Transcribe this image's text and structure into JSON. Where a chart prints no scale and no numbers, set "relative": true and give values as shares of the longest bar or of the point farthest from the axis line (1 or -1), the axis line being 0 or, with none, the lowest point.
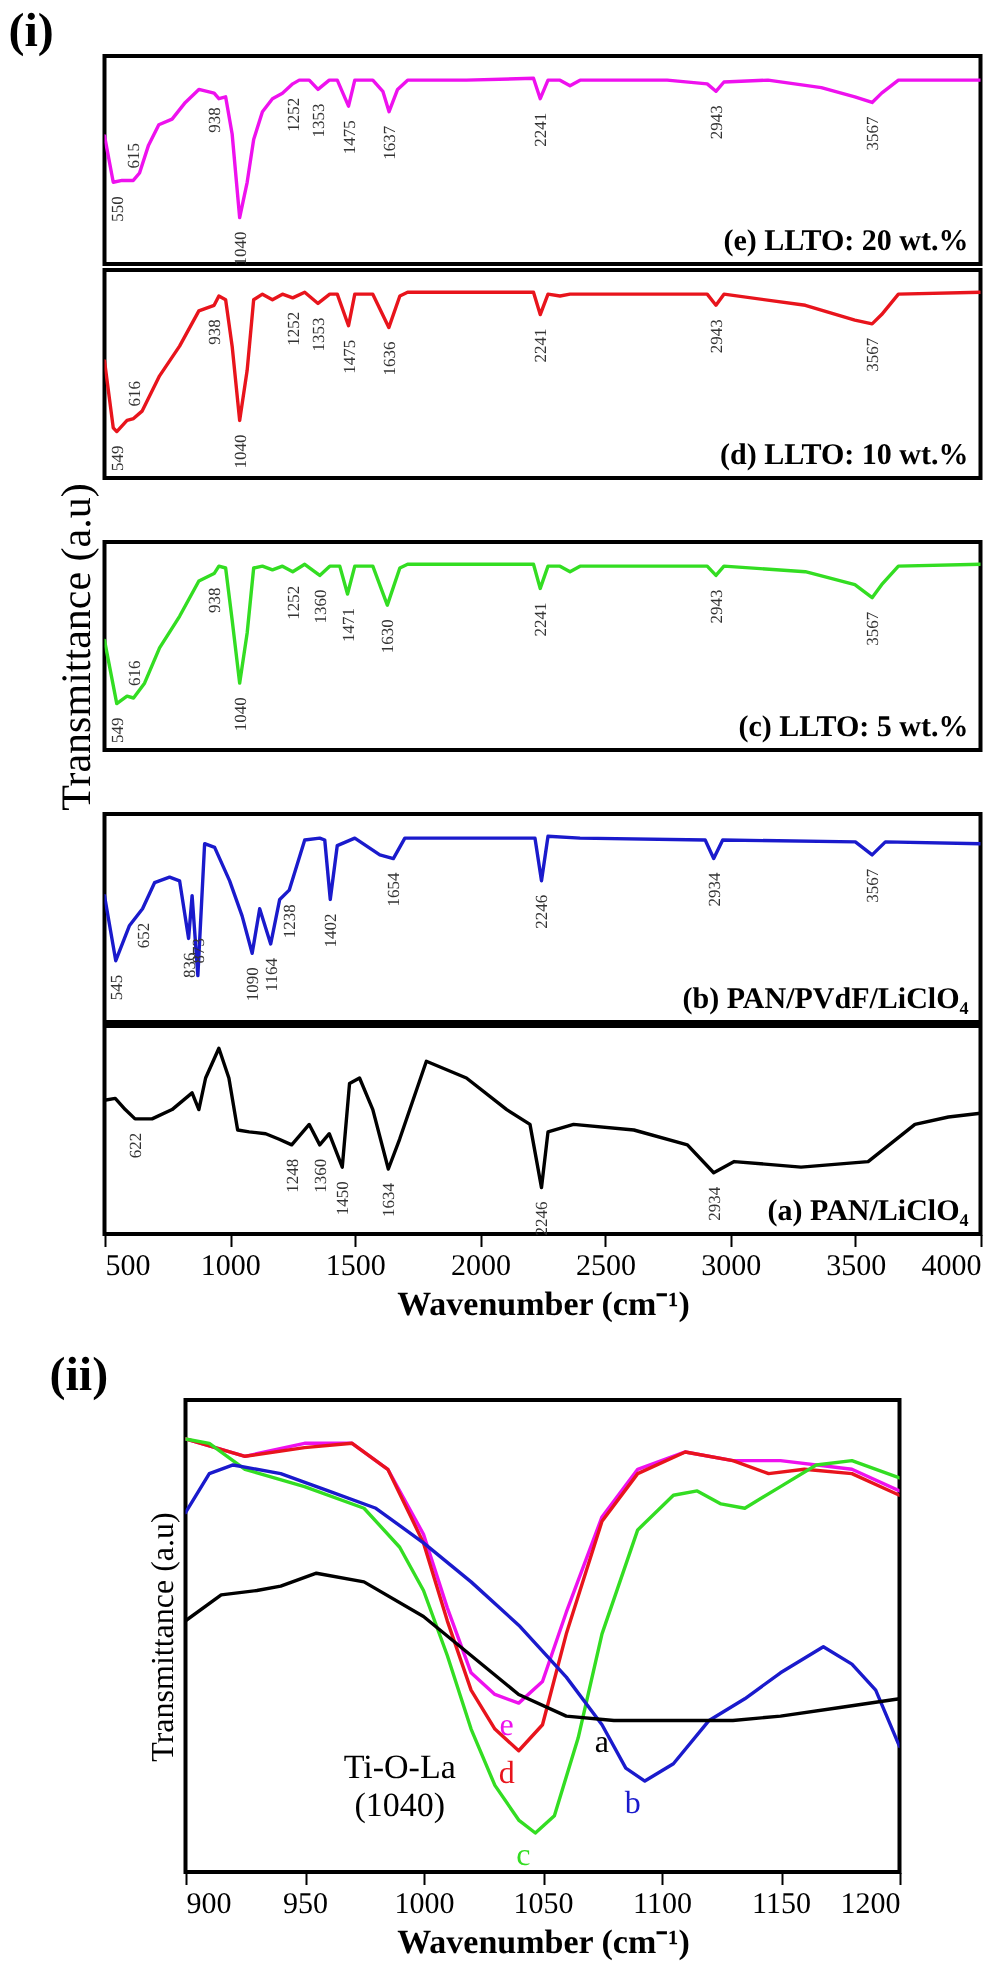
{
  "chart_data": [
    {
      "type": "line",
      "title": "(i)",
      "relative": true,
      "xlim": [
        500,
        4000
      ],
      "xticks": [
        500,
        1000,
        1500,
        2000,
        2500,
        3000,
        3500,
        4000
      ],
      "tick_labels": false,
      "x": [
        500,
        535,
        570,
        615,
        640,
        676,
        717,
        770,
        823,
        877,
        938,
        957,
        984,
        1010,
        1040,
        1070,
        1096,
        1131,
        1171,
        1211,
        1252,
        1278,
        1318,
        1353,
        1398,
        1430,
        1475,
        1500,
        1572,
        1612,
        1637,
        1671,
        1711,
        1946,
        2214,
        2241,
        2272,
        2320,
        2360,
        2400,
        2748,
        2908,
        2943,
        2975,
        3151,
        3364,
        3498,
        3567,
        3605,
        3672,
        3819,
        4000
      ],
      "series": [
        {
          "color": "#ee11ee",
          "values": [
            0.69,
            0.44,
            0.45,
            0.45,
            0.49,
            0.64,
            0.75,
            0.78,
            0.87,
            0.94,
            0.92,
            0.89,
            0.9,
            0.7,
            0.25,
            0.44,
            0.67,
            0.82,
            0.89,
            0.92,
            0.97,
            0.99,
            0.99,
            0.94,
            0.99,
            0.99,
            0.85,
            0.99,
            0.99,
            0.93,
            0.82,
            0.94,
            0.99,
            0.99,
            1.0,
            0.89,
            0.99,
            0.99,
            0.96,
            0.99,
            0.99,
            0.97,
            0.93,
            0.98,
            0.99,
            0.95,
            0.9,
            0.87,
            0.92,
            0.99,
            0.99,
            0.99
          ]
        }
      ],
      "annotations": [
        "(e) LLTO: 20 wt.%",
        {
          "text": "550",
          "x": 550,
          "y": 0.44
        },
        {
          "text": "615",
          "x": 615,
          "y": 0.45
        },
        {
          "text": "938",
          "x": 938,
          "y": 0.92
        },
        {
          "text": "1040",
          "x": 1040,
          "y": 0.25
        },
        {
          "text": "1252",
          "x": 1252,
          "y": 0.97
        },
        {
          "text": "1353",
          "x": 1353,
          "y": 0.94
        },
        {
          "text": "1475",
          "x": 1475,
          "y": 0.85
        },
        {
          "text": "1637",
          "x": 1637,
          "y": 0.82
        },
        {
          "text": "2241",
          "x": 2241,
          "y": 0.89
        },
        {
          "text": "2943",
          "x": 2943,
          "y": 0.93
        },
        {
          "text": "3567",
          "x": 3567,
          "y": 0.87
        }
      ]
    },
    {
      "type": "line",
      "relative": true,
      "xlim": [
        500,
        4000
      ],
      "xticks": [
        500,
        1000,
        1500,
        2000,
        2500,
        3000,
        3500,
        4000
      ],
      "tick_labels": false,
      "x": [
        500,
        535,
        549,
        590,
        616,
        650,
        720,
        800,
        877,
        938,
        957,
        984,
        1010,
        1040,
        1070,
        1096,
        1131,
        1171,
        1211,
        1252,
        1300,
        1353,
        1400,
        1430,
        1475,
        1500,
        1572,
        1636,
        1680,
        1711,
        2214,
        2241,
        2272,
        2320,
        2360,
        2908,
        2943,
        2975,
        3300,
        3498,
        3567,
        3605,
        3672,
        4000
      ],
      "series": [
        {
          "color": "#e8141c",
          "values": [
            0.63,
            0.27,
            0.25,
            0.31,
            0.32,
            0.36,
            0.55,
            0.71,
            0.9,
            0.93,
            0.98,
            0.96,
            0.71,
            0.31,
            0.58,
            0.96,
            0.99,
            0.96,
            0.99,
            0.97,
            1.0,
            0.94,
            0.99,
            0.99,
            0.82,
            0.99,
            0.99,
            0.81,
            0.98,
            1.0,
            1.0,
            0.88,
            0.99,
            0.98,
            0.99,
            0.99,
            0.93,
            0.99,
            0.93,
            0.85,
            0.83,
            0.88,
            0.99,
            1.0
          ]
        }
      ],
      "annotations": [
        "(d) LLTO: 10 wt.%",
        {
          "text": "549",
          "x": 549,
          "y": 0.25
        },
        {
          "text": "616",
          "x": 616,
          "y": 0.32
        },
        {
          "text": "938",
          "x": 938,
          "y": 0.93
        },
        {
          "text": "1040",
          "x": 1040,
          "y": 0.31
        },
        {
          "text": "1252",
          "x": 1252,
          "y": 0.97
        },
        {
          "text": "1353",
          "x": 1353,
          "y": 0.94
        },
        {
          "text": "1475",
          "x": 1475,
          "y": 0.82
        },
        {
          "text": "1636",
          "x": 1636,
          "y": 0.81
        },
        {
          "text": "2241",
          "x": 2241,
          "y": 0.88
        },
        {
          "text": "2943",
          "x": 2943,
          "y": 0.93
        },
        {
          "text": "3567",
          "x": 3567,
          "y": 0.83
        }
      ]
    },
    {
      "type": "line",
      "relative": true,
      "ylabel": "Transmittance (a.u)",
      "xlim": [
        500,
        4000
      ],
      "xticks": [
        500,
        1000,
        1500,
        2000,
        2500,
        3000,
        3500,
        4000
      ],
      "tick_labels": false,
      "x": [
        500,
        549,
        590,
        616,
        660,
        720,
        800,
        877,
        938,
        957,
        984,
        1010,
        1040,
        1070,
        1096,
        1131,
        1171,
        1211,
        1252,
        1300,
        1360,
        1400,
        1440,
        1471,
        1500,
        1572,
        1630,
        1680,
        1711,
        2214,
        2241,
        2272,
        2320,
        2360,
        2400,
        2908,
        2943,
        2975,
        3300,
        3498,
        3567,
        3605,
        3672,
        4000
      ],
      "series": [
        {
          "color": "#33dd22",
          "values": [
            0.59,
            0.25,
            0.29,
            0.28,
            0.36,
            0.55,
            0.72,
            0.91,
            0.95,
            0.99,
            0.98,
            0.7,
            0.36,
            0.63,
            0.98,
            0.99,
            0.97,
            0.99,
            0.96,
            1.0,
            0.94,
            0.99,
            0.99,
            0.84,
            0.99,
            0.99,
            0.78,
            0.98,
            1.0,
            1.0,
            0.87,
            0.99,
            0.99,
            0.96,
            0.99,
            0.99,
            0.94,
            0.99,
            0.96,
            0.89,
            0.82,
            0.89,
            0.99,
            1.0
          ]
        }
      ],
      "annotations": [
        "(c) LLTO: 5 wt.%",
        {
          "text": "549",
          "x": 549,
          "y": 0.25
        },
        {
          "text": "616",
          "x": 616,
          "y": 0.28
        },
        {
          "text": "938",
          "x": 938,
          "y": 0.95
        },
        {
          "text": "1040",
          "x": 1040,
          "y": 0.36
        },
        {
          "text": "1252",
          "x": 1252,
          "y": 0.96
        },
        {
          "text": "1360",
          "x": 1360,
          "y": 0.94
        },
        {
          "text": "1471",
          "x": 1471,
          "y": 0.84
        },
        {
          "text": "1630",
          "x": 1630,
          "y": 0.78
        },
        {
          "text": "2241",
          "x": 2241,
          "y": 0.87
        },
        {
          "text": "2943",
          "x": 2943,
          "y": 0.94
        },
        {
          "text": "3567",
          "x": 3567,
          "y": 0.82
        }
      ]
    },
    {
      "type": "line",
      "relative": true,
      "xlim": [
        500,
        4000
      ],
      "xticks": [
        500,
        1000,
        1500,
        2000,
        2500,
        3000,
        3500,
        4000
      ],
      "tick_labels": false,
      "x": [
        500,
        545,
        600,
        652,
        700,
        760,
        800,
        836,
        850,
        873,
        900,
        940,
        1000,
        1050,
        1090,
        1120,
        1164,
        1200,
        1238,
        1300,
        1360,
        1380,
        1402,
        1430,
        1500,
        1600,
        1654,
        1700,
        1900,
        2220,
        2246,
        2272,
        2400,
        2900,
        2934,
        2970,
        3500,
        3567,
        3620,
        4000
      ],
      "series": [
        {
          "color": "#1a1acc",
          "values": [
            0.68,
            0.33,
            0.52,
            0.61,
            0.75,
            0.78,
            0.76,
            0.45,
            0.68,
            0.25,
            0.96,
            0.94,
            0.76,
            0.57,
            0.37,
            0.61,
            0.42,
            0.66,
            0.71,
            0.98,
            0.99,
            0.98,
            0.66,
            0.95,
            0.99,
            0.9,
            0.88,
            0.99,
            0.99,
            0.99,
            0.76,
            1.0,
            0.99,
            0.98,
            0.88,
            0.98,
            0.97,
            0.9,
            0.97,
            0.96
          ]
        }
      ],
      "annotations": [
        "(b) PAN/PVdF/LiClO₄",
        {
          "text": "545",
          "x": 545,
          "y": 0.33
        },
        {
          "text": "652",
          "x": 652,
          "y": 0.61
        },
        {
          "text": "836",
          "x": 836,
          "y": 0.45
        },
        {
          "text": "873",
          "x": 873,
          "y": 0.25
        },
        {
          "text": "1090",
          "x": 1090,
          "y": 0.37
        },
        {
          "text": "1164",
          "x": 1164,
          "y": 0.42
        },
        {
          "text": "1238",
          "x": 1238,
          "y": 0.71
        },
        {
          "text": "1402",
          "x": 1402,
          "y": 0.66
        },
        {
          "text": "1654",
          "x": 1654,
          "y": 0.88
        },
        {
          "text": "2246",
          "x": 2246,
          "y": 0.76
        },
        {
          "text": "2934",
          "x": 2934,
          "y": 0.88
        },
        {
          "text": "3567",
          "x": 3567,
          "y": 0.9
        }
      ]
    },
    {
      "type": "line",
      "relative": true,
      "xlabel": "Wavenumber (cm⁻¹)",
      "xlim": [
        500,
        4000
      ],
      "xticks": [
        500,
        1000,
        1500,
        2000,
        2500,
        3000,
        3500,
        4000
      ],
      "tick_labels": "x",
      "x": [
        500,
        543,
        583,
        622,
        690,
        770,
        850,
        877,
        904,
        957,
        997,
        1032,
        1078,
        1144,
        1198,
        1248,
        1318,
        1360,
        1398,
        1450,
        1479,
        1519,
        1572,
        1634,
        1679,
        1786,
        1946,
        2107,
        2200,
        2246,
        2272,
        2374,
        2615,
        2829,
        2934,
        3016,
        3283,
        3551,
        3738,
        3872,
        4000
      ],
      "series": [
        {
          "color": "#000000",
          "values": [
            0.72,
            0.73,
            0.67,
            0.62,
            0.62,
            0.67,
            0.76,
            0.67,
            0.84,
            1.0,
            0.84,
            0.56,
            0.55,
            0.54,
            0.51,
            0.48,
            0.59,
            0.48,
            0.54,
            0.36,
            0.81,
            0.84,
            0.67,
            0.35,
            0.51,
            0.93,
            0.84,
            0.67,
            0.59,
            0.25,
            0.55,
            0.59,
            0.56,
            0.48,
            0.33,
            0.39,
            0.36,
            0.39,
            0.59,
            0.63,
            0.65
          ]
        }
      ],
      "annotations": [
        "(a) PAN/LiClO₄",
        {
          "text": "622",
          "x": 622,
          "y": 0.62
        },
        {
          "text": "1248",
          "x": 1248,
          "y": 0.48
        },
        {
          "text": "1360",
          "x": 1360,
          "y": 0.48
        },
        {
          "text": "1450",
          "x": 1450,
          "y": 0.36
        },
        {
          "text": "1634",
          "x": 1634,
          "y": 0.35
        },
        {
          "text": "2246",
          "x": 2246,
          "y": 0.25
        },
        {
          "text": "2934",
          "x": 2934,
          "y": 0.33
        }
      ]
    },
    {
      "type": "line",
      "title": "(ii)",
      "relative": true,
      "xlabel": "Wavenumber (cm⁻¹)",
      "ylabel": "Transmittance (a.u)",
      "xlim": [
        900,
        1200
      ],
      "xticks": [
        900,
        950,
        1000,
        1050,
        1100,
        1150,
        1200
      ],
      "tick_labels": "x",
      "series": [
        {
          "name": "e",
          "color": "#ee11ee",
          "x": [
            900,
            925,
            950,
            970,
            985,
            1000,
            1010,
            1020,
            1030,
            1040,
            1050,
            1060,
            1075,
            1090,
            1110,
            1130,
            1150,
            1180,
            1200
          ],
          "values": [
            1.0,
            0.96,
            0.99,
            0.99,
            0.93,
            0.78,
            0.61,
            0.46,
            0.41,
            0.39,
            0.44,
            0.6,
            0.82,
            0.93,
            0.97,
            0.95,
            0.95,
            0.93,
            0.88
          ]
        },
        {
          "name": "d",
          "color": "#e8141c",
          "x": [
            900,
            925,
            950,
            970,
            985,
            1000,
            1010,
            1020,
            1030,
            1040,
            1050,
            1060,
            1075,
            1090,
            1110,
            1130,
            1145,
            1160,
            1180,
            1200
          ],
          "values": [
            1.0,
            0.96,
            0.98,
            0.99,
            0.93,
            0.76,
            0.58,
            0.42,
            0.33,
            0.28,
            0.34,
            0.55,
            0.81,
            0.92,
            0.97,
            0.95,
            0.92,
            0.93,
            0.92,
            0.87
          ]
        },
        {
          "name": "c",
          "color": "#33dd22",
          "x": [
            900,
            910,
            925,
            950,
            975,
            990,
            1000,
            1010,
            1020,
            1030,
            1040,
            1047,
            1055,
            1065,
            1075,
            1090,
            1105,
            1115,
            1125,
            1135,
            1150,
            1165,
            1180,
            1200
          ],
          "values": [
            1.0,
            0.99,
            0.93,
            0.89,
            0.84,
            0.75,
            0.65,
            0.5,
            0.33,
            0.2,
            0.12,
            0.09,
            0.13,
            0.31,
            0.55,
            0.79,
            0.87,
            0.88,
            0.85,
            0.84,
            0.89,
            0.94,
            0.95,
            0.91
          ]
        },
        {
          "name": "b",
          "color": "#1a1acc",
          "x": [
            900,
            910,
            920,
            940,
            960,
            980,
            1000,
            1020,
            1040,
            1060,
            1075,
            1085,
            1093,
            1105,
            1120,
            1135,
            1150,
            1168,
            1180,
            1190,
            1200
          ],
          "values": [
            0.83,
            0.92,
            0.94,
            0.92,
            0.88,
            0.84,
            0.76,
            0.67,
            0.57,
            0.45,
            0.34,
            0.24,
            0.21,
            0.25,
            0.35,
            0.4,
            0.46,
            0.52,
            0.48,
            0.42,
            0.29
          ]
        },
        {
          "name": "a",
          "color": "#000000",
          "x": [
            900,
            915,
            930,
            940,
            955,
            975,
            1000,
            1020,
            1040,
            1060,
            1080,
            1100,
            1130,
            1150,
            1175,
            1200
          ],
          "values": [
            0.58,
            0.64,
            0.65,
            0.66,
            0.69,
            0.67,
            0.59,
            0.5,
            0.41,
            0.36,
            0.35,
            0.35,
            0.35,
            0.36,
            0.38,
            0.4
          ]
        }
      ],
      "annotations": [
        "Ti-O-La\n(1040)"
      ]
    }
  ]
}
